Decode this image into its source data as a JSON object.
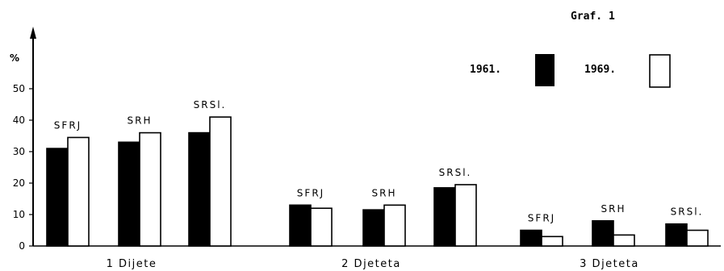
{
  "chart_data": {
    "type": "bar",
    "title": "Graf. 1",
    "ylabel": "%",
    "xlabel": "",
    "ylim": [
      0,
      50
    ],
    "yticks": [
      "0",
      "10",
      "20",
      "30",
      "40",
      "50"
    ],
    "legend": {
      "placement": "top-right",
      "items": [
        {
          "label": "1961.",
          "fill": "#000000"
        },
        {
          "label": "1969.",
          "fill": "#ffffff"
        }
      ]
    },
    "groups": [
      {
        "name": "1 Dijete",
        "bars": [
          {
            "label": "SFRJ",
            "values": [
              31,
              34.5
            ]
          },
          {
            "label": "SRH",
            "values": [
              33,
              36
            ]
          },
          {
            "label": "SRSl.",
            "values": [
              36,
              41
            ]
          }
        ]
      },
      {
        "name": "2 Djeteta",
        "bars": [
          {
            "label": "SFRJ",
            "values": [
              13,
              12
            ]
          },
          {
            "label": "SRH",
            "values": [
              11.5,
              13
            ]
          },
          {
            "label": "SRSl.",
            "values": [
              18.5,
              19.5
            ]
          }
        ]
      },
      {
        "name": "3 Djeteta",
        "bars": [
          {
            "label": "SFRJ",
            "values": [
              5,
              3
            ]
          },
          {
            "label": "SRH",
            "values": [
              8,
              3.5
            ]
          },
          {
            "label": "SRSl.",
            "values": [
              7,
              5
            ]
          }
        ]
      }
    ],
    "colors": {
      "series_1961": "#000000",
      "series_1969": "#ffffff",
      "axis": "#000000"
    },
    "grid": false
  }
}
